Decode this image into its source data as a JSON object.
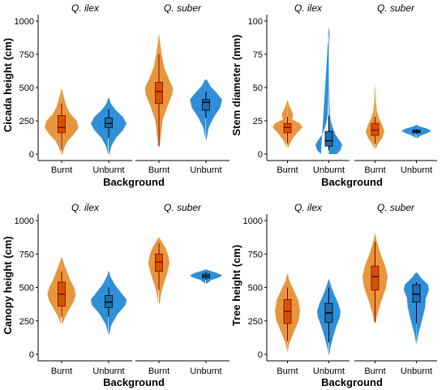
{
  "colors": {
    "burnt": "#E8963C",
    "unburnt": "#2F8FD8",
    "burnt_box": "#D35400",
    "unburnt_box": "#1F6FB0",
    "median_burnt": "#8B0000",
    "whisker": "#000000"
  },
  "chart_data": [
    {
      "type": "violin",
      "ylabel": "Cicada height (cm)",
      "xlabel": "Background",
      "ylim": [
        0,
        1000
      ],
      "yticks": [
        0,
        250,
        500,
        750,
        1000
      ],
      "facets": [
        {
          "name": "Q. ilex",
          "groups": [
            {
              "category": "Burnt",
              "min": 30,
              "q1": 160,
              "median": 200,
              "q3": 290,
              "max": 380,
              "shape": [
                [
                  0,
                  0.05
                ],
                [
                  50,
                  0.15
                ],
                [
                  100,
                  0.35
                ],
                [
                  150,
                  0.7
                ],
                [
                  200,
                  0.95
                ],
                [
                  250,
                  0.85
                ],
                [
                  300,
                  0.5
                ],
                [
                  350,
                  0.3
                ],
                [
                  400,
                  0.18
                ],
                [
                  450,
                  0.08
                ],
                [
                  490,
                  0.02
                ]
              ]
            },
            {
              "category": "Unburnt",
              "min": 120,
              "q1": 200,
              "median": 230,
              "q3": 270,
              "max": 340,
              "shape": [
                [
                  0,
                  0.04
                ],
                [
                  60,
                  0.15
                ],
                [
                  120,
                  0.4
                ],
                [
                  180,
                  0.8
                ],
                [
                  230,
                  1.0
                ],
                [
                  280,
                  0.8
                ],
                [
                  330,
                  0.4
                ],
                [
                  380,
                  0.12
                ],
                [
                  420,
                  0.03
                ]
              ]
            }
          ]
        },
        {
          "name": "Q. suber",
          "groups": [
            {
              "category": "Burnt",
              "min": 60,
              "q1": 380,
              "median": 470,
              "q3": 540,
              "max": 750,
              "shape": [
                [
                  50,
                  0.03
                ],
                [
                  150,
                  0.12
                ],
                [
                  250,
                  0.2
                ],
                [
                  350,
                  0.45
                ],
                [
                  450,
                  0.75
                ],
                [
                  500,
                  0.78
                ],
                [
                  550,
                  0.6
                ],
                [
                  650,
                  0.3
                ],
                [
                  750,
                  0.15
                ],
                [
                  850,
                  0.05
                ],
                [
                  900,
                  0.01
                ]
              ]
            },
            {
              "category": "Unburnt",
              "min": 270,
              "q1": 330,
              "median": 390,
              "q3": 410,
              "max": 470,
              "shape": [
                [
                  110,
                  0.03
                ],
                [
                  200,
                  0.15
                ],
                [
                  280,
                  0.45
                ],
                [
                  350,
                  0.8
                ],
                [
                  410,
                  0.9
                ],
                [
                  460,
                  0.6
                ],
                [
                  510,
                  0.25
                ],
                [
                  560,
                  0.05
                ]
              ]
            }
          ]
        }
      ]
    },
    {
      "type": "violin",
      "ylabel": "Stem diameter (mm)",
      "xlabel": "Background",
      "ylim": [
        0,
        100
      ],
      "yticks": [
        0,
        25,
        50,
        75,
        100
      ],
      "facets": [
        {
          "name": "Q. ilex",
          "groups": [
            {
              "category": "Burnt",
              "min": 8,
              "q1": 16,
              "median": 20,
              "q3": 23,
              "max": 28,
              "shape": [
                [
                  5,
                  0.05
                ],
                [
                  10,
                  0.25
                ],
                [
                  15,
                  0.55
                ],
                [
                  20,
                  0.95
                ],
                [
                  23,
                  0.8
                ],
                [
                  26,
                  0.3
                ],
                [
                  30,
                  0.35
                ],
                [
                  33,
                  0.25
                ],
                [
                  37,
                  0.1
                ],
                [
                  40,
                  0.03
                ]
              ]
            },
            {
              "category": "Unburnt",
              "min": 3,
              "q1": 6,
              "median": 10,
              "q3": 17,
              "max": 29,
              "shape": [
                [
                  0,
                  0.5
                ],
                [
                  3,
                  0.75
                ],
                [
                  7,
                  0.85
                ],
                [
                  10,
                  0.7
                ],
                [
                  15,
                  0.4
                ],
                [
                  20,
                  0.25
                ],
                [
                  25,
                  0.12
                ],
                [
                  30,
                  0.07
                ],
                [
                  40,
                  0.04
                ],
                [
                  50,
                  0.02
                ],
                [
                  60,
                  0.01
                ],
                [
                  70,
                  0.005
                ],
                [
                  80,
                  0.01
                ],
                [
                  85,
                  0.04
                ],
                [
                  89,
                  0.05
                ],
                [
                  93,
                  0.03
                ],
                [
                  95,
                  0.005
                ]
              ]
            }
          ]
        },
        {
          "name": "Q. suber",
          "groups": [
            {
              "category": "Burnt",
              "min": 8,
              "q1": 14,
              "median": 18,
              "q3": 23,
              "max": 28,
              "shape": [
                [
                  4,
                  0.04
                ],
                [
                  8,
                  0.2
                ],
                [
                  12,
                  0.45
                ],
                [
                  17,
                  0.6
                ],
                [
                  22,
                  0.45
                ],
                [
                  27,
                  0.25
                ],
                [
                  32,
                  0.12
                ],
                [
                  40,
                  0.05
                ],
                [
                  48,
                  0.02
                ],
                [
                  53,
                  0.005
                ]
              ]
            },
            {
              "category": "Unburnt",
              "min": 15,
              "q1": 16,
              "median": 17,
              "q3": 18,
              "max": 19,
              "shape": [
                [
                  12,
                  0.05
                ],
                [
                  14,
                  0.3
                ],
                [
                  16,
                  0.75
                ],
                [
                  17.5,
                  0.95
                ],
                [
                  19,
                  0.7
                ],
                [
                  21,
                  0.15
                ],
                [
                  22,
                  0.02
                ]
              ]
            }
          ]
        }
      ]
    },
    {
      "type": "violin",
      "ylabel": "Canopy height (cm)",
      "xlabel": "Background",
      "ylim": [
        0,
        1000
      ],
      "yticks": [
        0,
        250,
        500,
        750,
        1000
      ],
      "facets": [
        {
          "name": "Q. ilex",
          "groups": [
            {
              "category": "Burnt",
              "min": 280,
              "q1": 360,
              "median": 450,
              "q3": 540,
              "max": 620,
              "shape": [
                [
                  230,
                  0.05
                ],
                [
                  280,
                  0.2
                ],
                [
                  330,
                  0.4
                ],
                [
                  400,
                  0.7
                ],
                [
                  450,
                  0.8
                ],
                [
                  500,
                  0.7
                ],
                [
                  550,
                  0.5
                ],
                [
                  620,
                  0.3
                ],
                [
                  680,
                  0.12
                ],
                [
                  720,
                  0.03
                ]
              ]
            },
            {
              "category": "Unburnt",
              "min": 280,
              "q1": 350,
              "median": 390,
              "q3": 440,
              "max": 500,
              "shape": [
                [
                  150,
                  0.03
                ],
                [
                  220,
                  0.15
                ],
                [
                  300,
                  0.5
                ],
                [
                  370,
                  0.95
                ],
                [
                  410,
                  1.0
                ],
                [
                  460,
                  0.7
                ],
                [
                  520,
                  0.35
                ],
                [
                  580,
                  0.1
                ],
                [
                  620,
                  0.02
                ]
              ]
            }
          ]
        },
        {
          "name": "Q. suber",
          "groups": [
            {
              "category": "Burnt",
              "min": 480,
              "q1": 620,
              "median": 690,
              "q3": 750,
              "max": 830,
              "shape": [
                [
                  380,
                  0.04
                ],
                [
                  450,
                  0.12
                ],
                [
                  520,
                  0.25
                ],
                [
                  600,
                  0.45
                ],
                [
                  680,
                  0.6
                ],
                [
                  750,
                  0.5
                ],
                [
                  800,
                  0.35
                ],
                [
                  850,
                  0.12
                ],
                [
                  870,
                  0.03
                ]
              ]
            },
            {
              "category": "Unburnt",
              "min": 555,
              "q1": 570,
              "median": 585,
              "q3": 600,
              "max": 615,
              "shape": [
                [
                  530,
                  0.05
                ],
                [
                  555,
                  0.3
                ],
                [
                  575,
                  0.75
                ],
                [
                  590,
                  0.9
                ],
                [
                  610,
                  0.6
                ],
                [
                  625,
                  0.2
                ],
                [
                  635,
                  0.03
                ]
              ]
            }
          ]
        }
      ]
    },
    {
      "type": "violin",
      "ylabel": "Tree height (cm)",
      "xlabel": "Background",
      "ylim": [
        0,
        1000
      ],
      "yticks": [
        0,
        250,
        500,
        750,
        1000
      ],
      "facets": [
        {
          "name": "Q. ilex",
          "groups": [
            {
              "category": "Burnt",
              "min": 100,
              "q1": 230,
              "median": 320,
              "q3": 410,
              "max": 500,
              "shape": [
                [
                  20,
                  0.02
                ],
                [
                  80,
                  0.12
                ],
                [
                  150,
                  0.35
                ],
                [
                  250,
                  0.7
                ],
                [
                  320,
                  0.8
                ],
                [
                  400,
                  0.7
                ],
                [
                  480,
                  0.4
                ],
                [
                  550,
                  0.12
                ],
                [
                  600,
                  0.02
                ]
              ]
            },
            {
              "category": "Unburnt",
              "min": 90,
              "q1": 240,
              "median": 310,
              "q3": 380,
              "max": 500,
              "shape": [
                [
                  0,
                  0.04
                ],
                [
                  50,
                  0.1
                ],
                [
                  120,
                  0.25
                ],
                [
                  200,
                  0.45
                ],
                [
                  280,
                  0.7
                ],
                [
                  320,
                  0.75
                ],
                [
                  380,
                  0.6
                ],
                [
                  460,
                  0.3
                ],
                [
                  520,
                  0.12
                ],
                [
                  560,
                  0.02
                ]
              ]
            }
          ]
        },
        {
          "name": "Q. suber",
          "groups": [
            {
              "category": "Burnt",
              "min": 240,
              "q1": 480,
              "median": 580,
              "q3": 660,
              "max": 840,
              "shape": [
                [
                  230,
                  0.03
                ],
                [
                  300,
                  0.15
                ],
                [
                  400,
                  0.4
                ],
                [
                  500,
                  0.7
                ],
                [
                  580,
                  0.8
                ],
                [
                  660,
                  0.65
                ],
                [
                  750,
                  0.35
                ],
                [
                  850,
                  0.1
                ],
                [
                  900,
                  0.02
                ]
              ]
            },
            {
              "category": "Unburnt",
              "min": 230,
              "q1": 390,
              "median": 450,
              "q3": 520,
              "max": 540,
              "shape": [
                [
                  80,
                  0.02
                ],
                [
                  150,
                  0.12
                ],
                [
                  250,
                  0.35
                ],
                [
                  350,
                  0.55
                ],
                [
                  420,
                  0.6
                ],
                [
                  480,
                  0.8
                ],
                [
                  520,
                  0.75
                ],
                [
                  570,
                  0.3
                ],
                [
                  610,
                  0.05
                ]
              ]
            }
          ]
        }
      ]
    }
  ]
}
